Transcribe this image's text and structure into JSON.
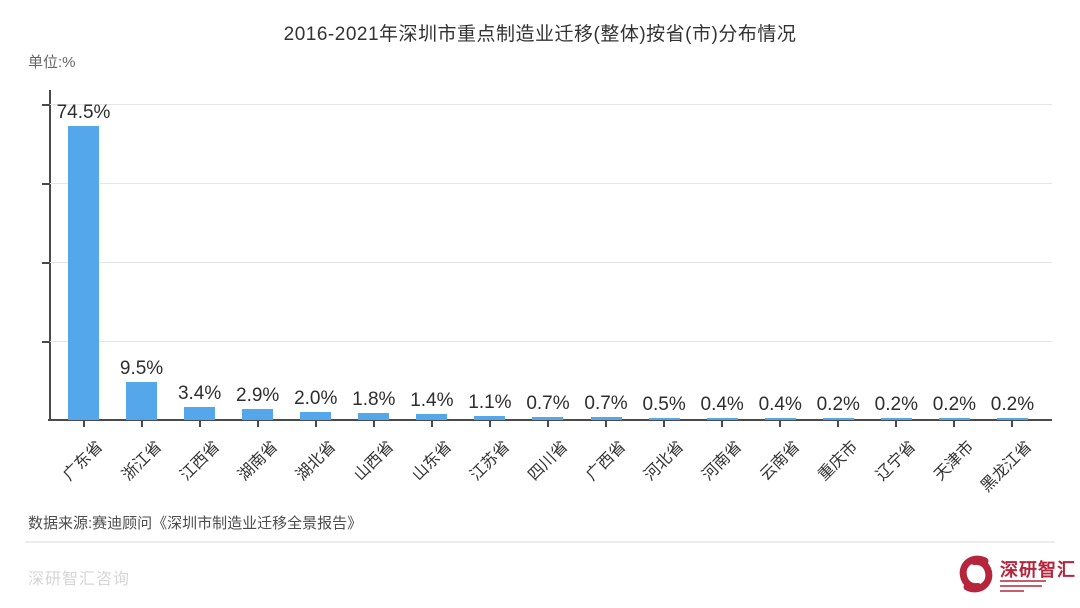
{
  "title": "2016-2021年深圳市重点制造业迁移(整体)按省(市)分布情况",
  "unit_label": "单位:%",
  "chart_data": {
    "type": "bar",
    "title": "2016-2021年深圳市重点制造业迁移(整体)按省(市)分布情况",
    "ylabel": "%",
    "xlabel": "",
    "categories": [
      "广东省",
      "浙江省",
      "江西省",
      "湖南省",
      "湖北省",
      "山西省",
      "山东省",
      "江苏省",
      "四川省",
      "广西省",
      "河北省",
      "河南省",
      "云南省",
      "重庆市",
      "辽宁省",
      "天津市",
      "黑龙江省"
    ],
    "values": [
      74.5,
      9.5,
      3.4,
      2.9,
      2.0,
      1.8,
      1.4,
      1.1,
      0.7,
      0.7,
      0.5,
      0.4,
      0.4,
      0.2,
      0.2,
      0.2,
      0.2
    ],
    "labels": [
      "74.5%",
      "9.5%",
      "3.4%",
      "2.9%",
      "2.0%",
      "1.8%",
      "1.4%",
      "1.1%",
      "0.7%",
      "0.7%",
      "0.5%",
      "0.4%",
      "0.4%",
      "0.2%",
      "0.2%",
      "0.2%",
      "0.2%"
    ],
    "ylim": [
      0,
      80
    ],
    "gridlines": [
      20,
      40,
      60,
      80
    ],
    "grid": true,
    "legend_position": "none",
    "bar_color": "#54a7ea"
  },
  "footer": {
    "source_text": "数据来源:赛迪顾问《深圳市制造业迁移全景报告》",
    "watermark": "深研智汇咨询",
    "logo_text": "深研智汇"
  },
  "colors": {
    "bar": "#54a7ea",
    "axis": "#4a4a4a",
    "grid": "#e5e5e5",
    "text": "#333333",
    "logo_red": "#b5253c"
  }
}
